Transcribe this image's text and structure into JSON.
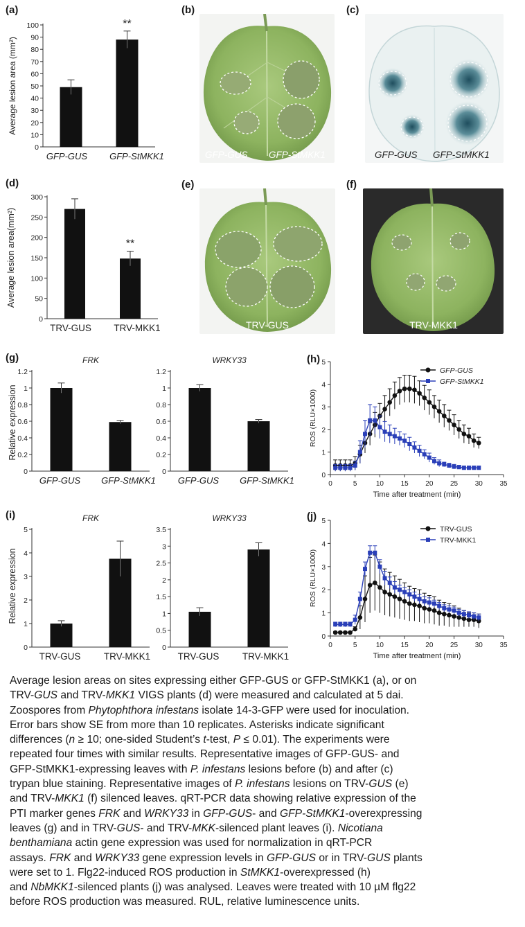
{
  "figure": {
    "panels": {
      "a": {
        "label": "(a)",
        "ylabel": "Average lesion area (mm²)",
        "sig": "**",
        "chart_data": {
          "type": "bar",
          "categories": [
            "GFP-GUS",
            "GFP-StMKK1"
          ],
          "values": [
            49,
            88
          ],
          "errors": [
            6,
            7
          ],
          "ylabel": "Average lesion area (mm²)",
          "ylim": [
            0,
            100
          ],
          "yticks": [
            0,
            10,
            20,
            30,
            40,
            50,
            60,
            70,
            80,
            90,
            100
          ]
        }
      },
      "b": {
        "label": "(b)",
        "left_text": "GFP-GUS",
        "right_text": "GFP-StMKK1"
      },
      "c": {
        "label": "(c)",
        "left_text": "GFP-GUS",
        "right_text": "GFP-StMKK1"
      },
      "d": {
        "label": "(d)",
        "ylabel": "Average lesion area(mm²)",
        "sig": "**",
        "chart_data": {
          "type": "bar",
          "categories": [
            "TRV-GUS",
            "TRV-MKK1"
          ],
          "values": [
            270,
            148
          ],
          "errors": [
            25,
            18
          ],
          "ylabel": "Average lesion area(mm²)",
          "ylim": [
            0,
            300
          ],
          "yticks": [
            0,
            50,
            100,
            150,
            200,
            250,
            300
          ]
        }
      },
      "e": {
        "label": "(e)",
        "bottom_text": "TRV-GUS"
      },
      "f": {
        "label": "(f)",
        "bottom_text": "TRV-MKK1"
      },
      "g": {
        "label": "(g)",
        "ylabel": "Relative  expression",
        "chart_data": [
          {
            "type": "bar",
            "title": "FRK",
            "categories": [
              "GFP-GUS",
              "GFP-StMKK1"
            ],
            "values": [
              1.0,
              0.59
            ],
            "errors": [
              0.06,
              0.02
            ],
            "ylim": [
              0,
              1.2
            ],
            "yticks": [
              0,
              0.2,
              0.4,
              0.6,
              0.8,
              1,
              1.2
            ]
          },
          {
            "type": "bar",
            "title": "WRKY33",
            "categories": [
              "GFP-GUS",
              "GFP-StMKK1"
            ],
            "values": [
              1.0,
              0.6
            ],
            "errors": [
              0.04,
              0.02
            ],
            "ylim": [
              0,
              1.2
            ],
            "yticks": [
              0,
              0.2,
              0.4,
              0.6,
              0.8,
              1,
              1.2
            ]
          }
        ]
      },
      "h": {
        "label": "(h)",
        "chart_data": {
          "type": "line",
          "xlabel": "Time after treatment (min)",
          "ylabel": "ROS (RLU×1000)",
          "xlim": [
            0,
            35
          ],
          "ylim": [
            0,
            5
          ],
          "xticks": [
            0,
            5,
            10,
            15,
            20,
            25,
            30,
            35
          ],
          "yticks": [
            0,
            1,
            2,
            3,
            4,
            5
          ],
          "legend": "top-right",
          "series": [
            {
              "name": "GFP-GUS",
              "color": "#111111",
              "marker": "circle",
              "x": [
                1,
                2,
                3,
                4,
                5,
                6,
                7,
                8,
                9,
                10,
                11,
                12,
                13,
                14,
                15,
                16,
                17,
                18,
                19,
                20,
                21,
                22,
                23,
                24,
                25,
                26,
                27,
                28,
                29,
                30
              ],
              "y": [
                0.4,
                0.4,
                0.4,
                0.4,
                0.5,
                0.9,
                1.4,
                1.8,
                2.2,
                2.6,
                2.9,
                3.2,
                3.5,
                3.7,
                3.8,
                3.8,
                3.75,
                3.6,
                3.4,
                3.2,
                3.0,
                2.8,
                2.6,
                2.4,
                2.2,
                2.0,
                1.8,
                1.7,
                1.5,
                1.4
              ],
              "err": [
                0.25,
                0.25,
                0.25,
                0.25,
                0.3,
                0.4,
                0.45,
                0.5,
                0.55,
                0.55,
                0.6,
                0.6,
                0.6,
                0.6,
                0.6,
                0.6,
                0.6,
                0.55,
                0.55,
                0.55,
                0.5,
                0.5,
                0.5,
                0.45,
                0.45,
                0.4,
                0.4,
                0.35,
                0.3,
                0.25
              ]
            },
            {
              "name": "GFP-StMKK1",
              "color": "#2a3fb8",
              "marker": "square",
              "x": [
                1,
                2,
                3,
                4,
                5,
                6,
                7,
                8,
                9,
                10,
                11,
                12,
                13,
                14,
                15,
                16,
                17,
                18,
                19,
                20,
                21,
                22,
                23,
                24,
                25,
                26,
                27,
                28,
                29,
                30
              ],
              "y": [
                0.3,
                0.3,
                0.3,
                0.3,
                0.4,
                1.0,
                1.8,
                2.4,
                2.4,
                2.1,
                1.9,
                1.8,
                1.7,
                1.6,
                1.5,
                1.35,
                1.2,
                1.05,
                0.9,
                0.75,
                0.6,
                0.5,
                0.45,
                0.4,
                0.35,
                0.33,
                0.3,
                0.3,
                0.3,
                0.3
              ],
              "err": [
                0.15,
                0.15,
                0.15,
                0.15,
                0.2,
                0.5,
                0.6,
                0.7,
                0.6,
                0.5,
                0.45,
                0.4,
                0.35,
                0.3,
                0.3,
                0.3,
                0.25,
                0.25,
                0.2,
                0.2,
                0.15,
                0.15,
                0.1,
                0.1,
                0.1,
                0.08,
                0.08,
                0.08,
                0.08,
                0.08
              ]
            }
          ]
        }
      },
      "i": {
        "label": "(i)",
        "ylabel": "Relative  expression",
        "chart_data": [
          {
            "type": "bar",
            "title": "FRK",
            "categories": [
              "TRV-GUS",
              "TRV-MKK1"
            ],
            "values": [
              1.0,
              3.75
            ],
            "errors": [
              0.12,
              0.75
            ],
            "ylim": [
              0,
              5
            ],
            "yticks": [
              0,
              1,
              2,
              3,
              4,
              5
            ]
          },
          {
            "type": "bar",
            "title": "WRKY33",
            "categories": [
              "TRV-GUS",
              "TRV-MKK1"
            ],
            "values": [
              1.05,
              2.9
            ],
            "errors": [
              0.12,
              0.2
            ],
            "ylim": [
              0,
              3.5
            ],
            "yticks": [
              0,
              0.5,
              1,
              1.5,
              2,
              2.5,
              3,
              3.5
            ]
          }
        ]
      },
      "j": {
        "label": "(j)",
        "chart_data": {
          "type": "line",
          "xlabel": "Time after treatment  (min)",
          "ylabel": "ROS (RLU×1000)",
          "xlim": [
            0,
            35
          ],
          "ylim": [
            0,
            5
          ],
          "xticks": [
            0,
            5,
            10,
            15,
            20,
            25,
            30,
            35
          ],
          "yticks": [
            0,
            1,
            2,
            3,
            4,
            5
          ],
          "legend": "top-right",
          "series": [
            {
              "name": "TRV-GUS",
              "color": "#111111",
              "marker": "circle",
              "x": [
                1,
                2,
                3,
                4,
                5,
                6,
                7,
                8,
                9,
                10,
                11,
                12,
                13,
                14,
                15,
                16,
                17,
                18,
                19,
                20,
                21,
                22,
                23,
                24,
                25,
                26,
                27,
                28,
                29,
                30
              ],
              "y": [
                0.15,
                0.15,
                0.15,
                0.15,
                0.3,
                0.8,
                1.6,
                2.2,
                2.3,
                2.1,
                1.9,
                1.8,
                1.7,
                1.6,
                1.5,
                1.4,
                1.35,
                1.3,
                1.2,
                1.15,
                1.1,
                1.0,
                0.95,
                0.9,
                0.85,
                0.8,
                0.75,
                0.7,
                0.7,
                0.65
              ],
              "err": [
                0.05,
                0.05,
                0.05,
                0.05,
                0.1,
                0.5,
                1.0,
                1.2,
                1.2,
                1.1,
                1.0,
                0.95,
                0.9,
                0.85,
                0.8,
                0.75,
                0.7,
                0.7,
                0.65,
                0.6,
                0.6,
                0.55,
                0.5,
                0.5,
                0.45,
                0.4,
                0.35,
                0.3,
                0.3,
                0.3
              ]
            },
            {
              "name": "TRV-MKK1",
              "color": "#2a3fb8",
              "marker": "square",
              "x": [
                1,
                2,
                3,
                4,
                5,
                6,
                7,
                8,
                9,
                10,
                11,
                12,
                13,
                14,
                15,
                16,
                17,
                18,
                19,
                20,
                21,
                22,
                23,
                24,
                25,
                26,
                27,
                28,
                29,
                30
              ],
              "y": [
                0.5,
                0.5,
                0.5,
                0.5,
                0.7,
                1.6,
                2.9,
                3.6,
                3.6,
                3.0,
                2.5,
                2.3,
                2.1,
                2.0,
                1.9,
                1.8,
                1.7,
                1.6,
                1.5,
                1.45,
                1.4,
                1.3,
                1.2,
                1.15,
                1.1,
                1.0,
                0.95,
                0.9,
                0.85,
                0.8
              ],
              "err": [
                0.1,
                0.1,
                0.1,
                0.1,
                0.2,
                0.3,
                0.3,
                0.3,
                0.3,
                0.3,
                0.3,
                0.25,
                0.25,
                0.2,
                0.2,
                0.2,
                0.2,
                0.2,
                0.2,
                0.2,
                0.15,
                0.15,
                0.15,
                0.15,
                0.15,
                0.15,
                0.15,
                0.15,
                0.15,
                0.15
              ]
            }
          ]
        }
      }
    }
  },
  "caption": {
    "l1": "Average lesion areas on sites expressing either GFP-GUS or GFP-StMKK1 (a), or on",
    "l2a": "TRV-",
    "l2b": "GUS",
    "l2c": " and TRV-",
    "l2d": "MKK1",
    "l2e": " VIGS plants (d) were measured and calculated at 5 dai.",
    "l3a": "Zoospores from ",
    "l3b": "Phytophthora infestans",
    "l3c": " isolate 14-3-GFP were used for inoculation.",
    "l4": "Error bars show SE from more than 10 replicates. Asterisks indicate significant",
    "l5a": "differences (",
    "l5b": "n",
    "l5c": " ≥ 10; one-sided Student’s ",
    "l5d": "t",
    "l5e": "-test, ",
    "l5f": "P",
    "l5g": " ≤ 0.01). The experiments were",
    "l6": "repeated four times with similar results. Representative images of GFP-GUS- and",
    "l7a": "GFP-StMKK1-expressing leaves with ",
    "l7b": "P. infestans",
    "l7c": " lesions before (b) and after (c)",
    "l8a": "trypan blue staining. Representative images of ",
    "l8b": "P. infestans",
    "l8c": " lesions on TRV-",
    "l8d": "GUS",
    "l8e": " (e)",
    "l9a": "and TRV-",
    "l9b": "MKK1",
    "l9c": " (f) silenced leaves. qRT-PCR data showing relative expression of the",
    "l10a": "PTI marker genes ",
    "l10b": "FRK",
    "l10c": " and ",
    "l10d": "WRKY33",
    "l10e": " in ",
    "l10f": "GFP-GUS",
    "l10g": "- and ",
    "l10h": "GFP-StMKK1",
    "l10i": "-overexpressing",
    "l11a": "leaves (g) and in TRV-",
    "l11b": "GUS",
    "l11c": "- and TRV-",
    "l11d": "MKK",
    "l11e": "-silenced plant leaves (i). ",
    "l11f": "Nicotiana",
    "l12a": "benthamiana",
    "l12b": " actin gene expression was used for normalization in qRT-PCR",
    "l13a": "assays. ",
    "l13b": "FRK",
    "l13c": " and ",
    "l13d": "WRKY33",
    "l13e": " gene expression levels in ",
    "l13f": "GFP-GUS",
    "l13g": " or in TRV-",
    "l13h": "GUS",
    "l13i": " plants",
    "l14a": "were set to 1. Flg22-induced ROS production in ",
    "l14b": "StMKK1",
    "l14c": "-overexpressed (h)",
    "l15a": "and ",
    "l15b": "NbMKK1",
    "l15c": "-silenced plants (j) was analysed. Leaves were treated with 10 µM flg22",
    "l16": "before ROS production was measured. RUL, relative luminescence units."
  }
}
